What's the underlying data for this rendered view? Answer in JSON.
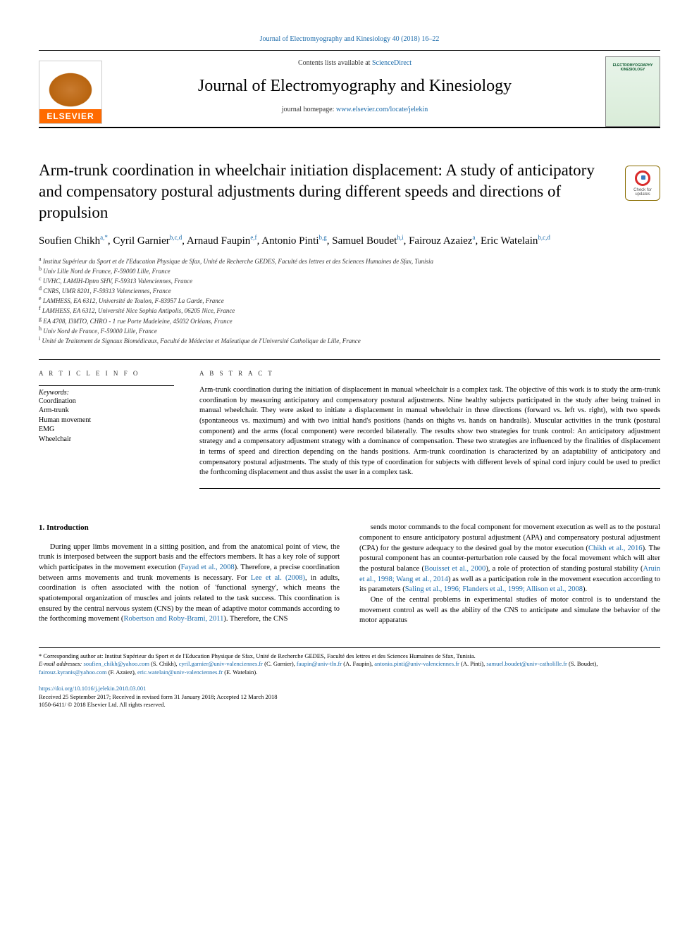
{
  "top_link": "Journal of Electromyography and Kinesiology 40 (2018) 16–22",
  "masthead": {
    "contents_prefix": "Contents lists available at ",
    "contents_link": "ScienceDirect",
    "journal_name": "Journal of Electromyography and Kinesiology",
    "homepage_prefix": "journal homepage: ",
    "homepage_url": "www.elsevier.com/locate/jelekin",
    "elsevier_label": "ELSEVIER",
    "cover_text_line1": "ELECTROMYOGRAPHY",
    "cover_text_line2": "KINESIOLOGY"
  },
  "updates_badge": "Check for updates",
  "title": "Arm-trunk coordination in wheelchair initiation displacement: A study of anticipatory and compensatory postural adjustments during different speeds and directions of propulsion",
  "authors_html": "Soufien Chikh<sup>a,*</sup>, Cyril Garnier<sup>b,c,d</sup>, Arnaud Faupin<sup>e,f</sup>, Antonio Pinti<sup>b,g</sup>, Samuel Boudet<sup>h,i</sup>, Fairouz Azaiez<sup>a</sup>, Eric Watelain<sup>b,c,d</sup>",
  "affiliations": [
    "a Institut Supérieur du Sport et de l'Education Physique de Sfax, Unité de Recherche GEDES, Faculté des lettres et des Sciences Humaines de Sfax, Tunisia",
    "b Univ Lille Nord de France, F-59000 Lille, France",
    "c UVHC, LAMIH-Dptm SHV, F-59313 Valenciennes, France",
    "d CNRS, UMR 8201, F-59313 Valenciennes, France",
    "e LAMHESS, EA 6312, Université de Toulon, F-83957 La Garde, France",
    "f LAMHESS, EA 6312, Université Nice Sophia Antipolis, 06205 Nice, France",
    "g EA 4708, I3MTO, CHRO - 1 rue Porte Madeleine, 45032 Orléans, France",
    "h Univ Nord de France, F-59000 Lille, France",
    "i Unité de Traitement de Signaux Biomédicaux, Faculté de Médecine et Maïeutique de l'Université Catholique de Lille, France"
  ],
  "article_info_label": "A R T I C L E  I N F O",
  "abstract_label": "A B S T R A C T",
  "keywords_label": "Keywords:",
  "keywords": [
    "Coordination",
    "Arm-trunk",
    "Human movement",
    "EMG",
    "Wheelchair"
  ],
  "abstract": "Arm-trunk coordination during the initiation of displacement in manual wheelchair is a complex task. The objective of this work is to study the arm-trunk coordination by measuring anticipatory and compensatory postural adjustments. Nine healthy subjects participated in the study after being trained in manual wheelchair. They were asked to initiate a displacement in manual wheelchair in three directions (forward vs. left vs. right), with two speeds (spontaneous vs. maximum) and with two initial hand's positions (hands on thighs vs. hands on handrails). Muscular activities in the trunk (postural component) and the arms (focal component) were recorded bilaterally. The results show two strategies for trunk control: An anticipatory adjustment strategy and a compensatory adjustment strategy with a dominance of compensation. These two strategies are influenced by the finalities of displacement in terms of speed and direction depending on the hands positions. Arm-trunk coordination is characterized by an adaptability of anticipatory and compensatory postural adjustments. The study of this type of coordination for subjects with different levels of spinal cord injury could be used to predict the forthcoming displacement and thus assist the user in a complex task.",
  "section_heading": "1. Introduction",
  "col1_para": "During upper limbs movement in a sitting position, and from the anatomical point of view, the trunk is interposed between the support basis and the effectors members. It has a key role of support which participates in the movement execution (<a>Fayad et al., 2008</a>). Therefore, a precise coordination between arms movements and trunk movements is necessary. For <a>Lee et al. (2008)</a>, in adults, coordination is often associated with the notion of 'functional synergy', which means the spatiotemporal organization of muscles and joints related to the task success. This coordination is ensured by the central nervous system (CNS) by the mean of adaptive motor commands according to the forthcoming movement (<a>Robertson and Roby-Brami, 2011</a>). Therefore, the CNS",
  "col2_para1": "sends motor commands to the focal component for movement execution as well as to the postural component to ensure anticipatory postural adjustment (APA) and compensatory postural adjustment (CPA) for the gesture adequacy to the desired goal by the motor execution (<a>Chikh et al., 2016</a>). The postural component has an counter-perturbation role caused by the focal movement which will alter the postural balance (<a>Bouisset et al., 2000</a>), a role of protection of standing postural stability (<a>Aruin et al., 1998; Wang et al., 2014</a>) as well as a participation role in the movement execution according to its parameters (<a>Saling et al., 1996; Flanders et al., 1999; Allison et al., 2008</a>).",
  "col2_para2": "One of the central problems in experimental studies of motor control is to understand the movement control as well as the ability of the CNS to anticipate and simulate the behavior of the motor apparatus",
  "footnote_corresponding": "* Corresponding author at: Institut Supérieur du Sport et de l'Education Physique de Sfax, Unité de Recherche GEDES, Faculté des lettres et des Sciences Humaines de Sfax, Tunisia.",
  "footnote_emails_label": "E-mail addresses: ",
  "footnote_emails_html": "<a>soufien_chikh@yahoo.com</a> (S. Chikh), <a>cyril.garnier@univ-valenciennes.fr</a> (C. Garnier), <a>faupin@univ-tln.fr</a> (A. Faupin), <a>antonio.pinti@univ-valenciennes.fr</a> (A. Pinti), <a>samuel.boudet@univ-catholille.fr</a> (S. Boudet), <a>fairouz.kyranis@yahoo.com</a> (F. Azaiez), <a>eric.watelain@univ-valenciennes.fr</a> (E. Watelain).",
  "doi": "https://doi.org/10.1016/j.jelekin.2018.03.001",
  "received": "Received 25 September 2017; Received in revised form 31 January 2018; Accepted 12 March 2018",
  "copyright": "1050-6411/ © 2018 Elsevier Ltd. All rights reserved.",
  "colors": {
    "link": "#1a6aaa",
    "elsevier_orange": "#ff6a00",
    "text": "#000000",
    "bg": "#ffffff"
  }
}
